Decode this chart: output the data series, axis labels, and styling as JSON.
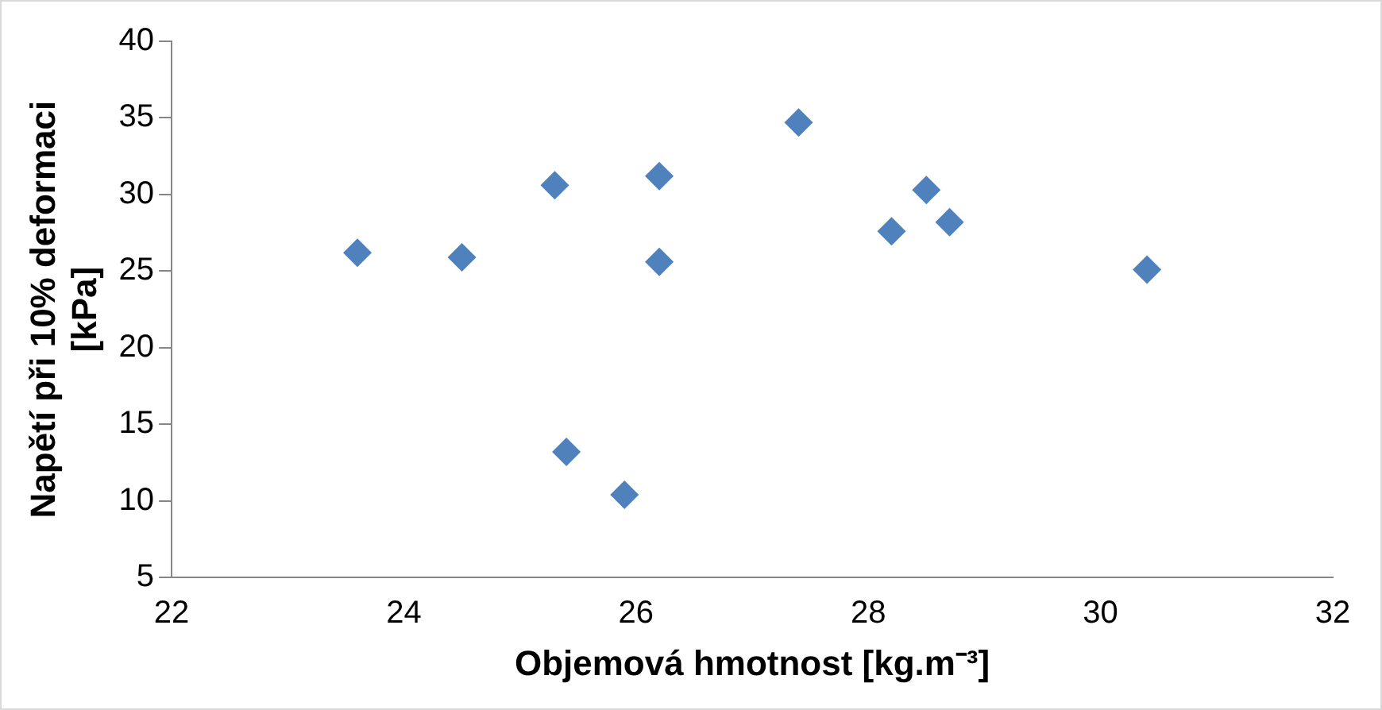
{
  "chart_data": {
    "type": "scatter",
    "xlabel": "Objemová hmotnost [kg.m⁻³]",
    "ylabel": "Napětí při 10% deformaci [kPa]",
    "series": [
      {
        "color": "#4f81bd",
        "x": [
          23.6,
          24.5,
          25.3,
          25.4,
          25.9,
          26.2,
          26.2,
          27.4,
          28.2,
          28.5,
          28.7,
          30.4
        ],
        "values": [
          26.2,
          25.9,
          30.6,
          13.2,
          10.4,
          31.2,
          25.6,
          34.7,
          27.6,
          30.3,
          28.2,
          25.1
        ]
      }
    ],
    "xlim": [
      22,
      32
    ],
    "xticks": [
      22,
      24,
      26,
      28,
      30,
      32
    ],
    "ylim": [
      5,
      40
    ],
    "yticks": [
      5,
      10,
      15,
      20,
      25,
      30,
      35,
      40
    ],
    "grid": false,
    "legend": false,
    "marker": "diamond"
  }
}
